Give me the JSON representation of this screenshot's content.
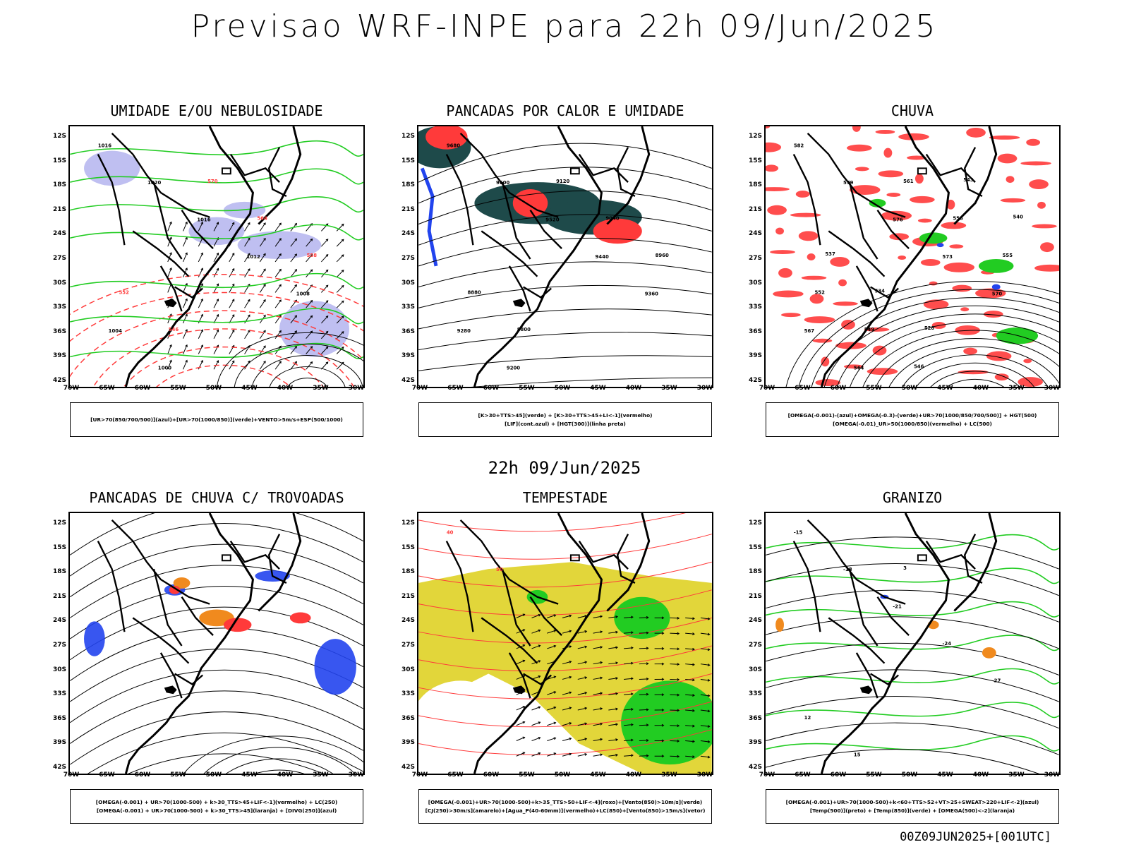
{
  "main_title": "Previsao WRF-INPE  para 22h 09/Jun/2025",
  "mid_title": "22h 09/Jun/2025",
  "footer": "00Z09JUN2025+[001UTC]",
  "lat_labels": [
    "12S",
    "15S",
    "18S",
    "21S",
    "24S",
    "27S",
    "30S",
    "33S",
    "36S",
    "39S",
    "42S"
  ],
  "lon_labels": [
    "70W",
    "65W",
    "60W",
    "55W",
    "50W",
    "45W",
    "40W",
    "35W",
    "30W"
  ],
  "panels": [
    {
      "title": "UMIDADE E/OU NEBULOSIDADE",
      "legend": [
        "[UR>70(850/700/500)](azul)+[UR>70(1000/850)](verde)+VENTO>5m/s+ESP(500/1000)"
      ],
      "contour_labels": [
        "1016",
        "1020",
        "1016",
        "1012",
        "1008",
        "1004",
        "1000",
        "570",
        "564",
        "558",
        "552",
        "546"
      ]
    },
    {
      "title": "PANCADAS POR CALOR E UMIDADE",
      "legend": [
        "[K>30+TTS>45](verde) + [K>30+TTS>45+LI<-1](vermelho)",
        "[LIF](cont.azul) + [HGT(300)](linha preta)"
      ],
      "contour_labels": [
        "9680",
        "9600",
        "9520",
        "9440",
        "9360",
        "9280",
        "9200",
        "9120",
        "9040",
        "8960",
        "8880",
        "8800"
      ]
    },
    {
      "title": "CHUVA",
      "legend": [
        "[OMEGA(-0.001)-(azul)+OMEGA(-0.3)-(verde)+UR>70(1000/850/700/500)] + HGT(500)",
        "[OMEGA(-0.01)_UR>50(1000/850)(vermelho) + LC(500)"
      ],
      "contour_labels": [
        "582",
        "579",
        "576",
        "573",
        "570",
        "567",
        "564",
        "561",
        "558",
        "555",
        "552",
        "549",
        "546",
        "543",
        "540",
        "537",
        "534",
        "528"
      ]
    },
    {
      "title": "PANCADAS DE CHUVA C/ TROVOADAS",
      "legend": [
        "[OMEGA(-0.001) + UR>70(1000-500) + k>30_TTS>45+LIF<-1](vermelho) + LC(250)",
        "[OMEGA(-0.001) + UR>70(1000-500) + k>30_TTS>45](laranja) + [DIVG(250)](azul)"
      ],
      "contour_labels": []
    },
    {
      "title": "TEMPESTADE",
      "legend": [
        "[OMEGA(-0.001)+UR>70(1000-500)+k>35_TTS>50+LIF<-4](roxo)+[Vento(850)>10m/s](verde)",
        "[CJ(250)>30m/s](amarelo)+[Agua_P(40-60mm)](vermelho)+LC(850)+[Vento(850)>15m/s](vetor)"
      ],
      "contour_labels": [
        "40",
        "50"
      ]
    },
    {
      "title": "GRANIZO",
      "legend": [
        "[OMEGA(-0.001)+UR>70(1000-500)+k<60+TTS>52+VT>25+SWEAT>220+LIF<-2](azul)",
        "[Temp(500)](preto) + [Temp(850)](verde) + [OMEGA(500)<-2](laranja)"
      ],
      "contour_labels": [
        "-15",
        "-18",
        "-21",
        "-24",
        "-27",
        "12",
        "15",
        "3"
      ]
    }
  ],
  "colors": {
    "black": "#000000",
    "red": "#ff3a3a",
    "green": "#22cc22",
    "blue": "#2244ee",
    "lavender": "#b8b8f0",
    "darkteal": "#1e4a4a",
    "yellow": "#e2d63a",
    "orange": "#f08a1e"
  }
}
